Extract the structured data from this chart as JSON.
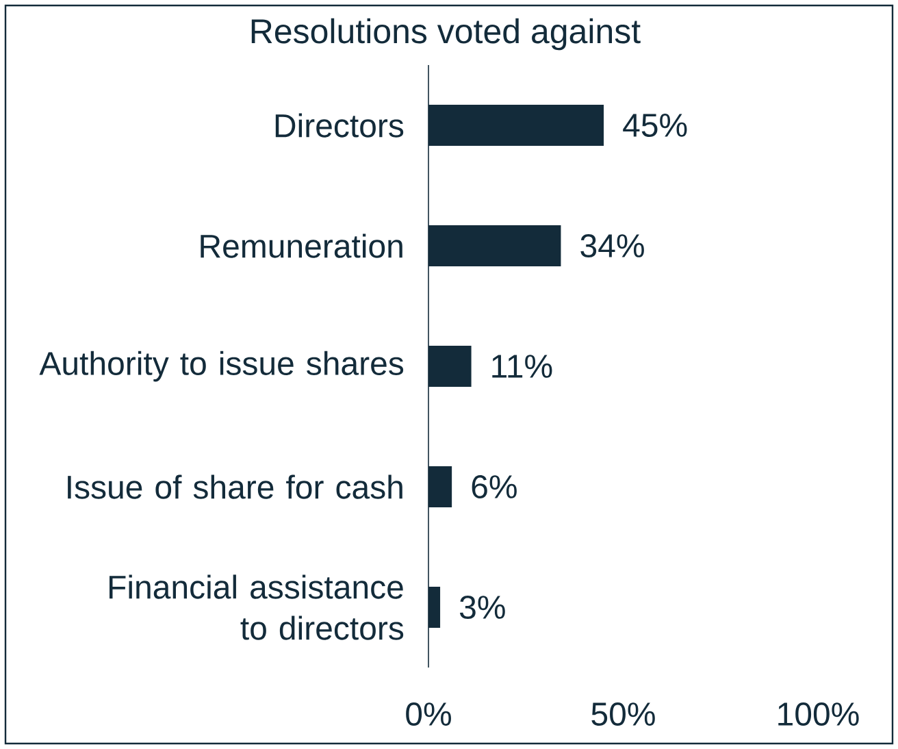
{
  "chart_data": {
    "type": "bar",
    "orientation": "horizontal",
    "title": "Resolutions voted against",
    "categories": [
      "Directors",
      "Remuneration",
      "Authority to issue shares",
      "Issue of share for cash",
      "Financial assistance to directors"
    ],
    "values": [
      45,
      34,
      11,
      6,
      3
    ],
    "value_labels": [
      "45%",
      "34%",
      "11%",
      "6%",
      "3%"
    ],
    "color": "#132b3a",
    "xlim": [
      0,
      100
    ],
    "xticks": [
      {
        "value": 0,
        "label": "0%"
      },
      {
        "value": 50,
        "label": "50%"
      },
      {
        "value": 100,
        "label": "100%"
      }
    ],
    "grid": false,
    "legend": false
  }
}
